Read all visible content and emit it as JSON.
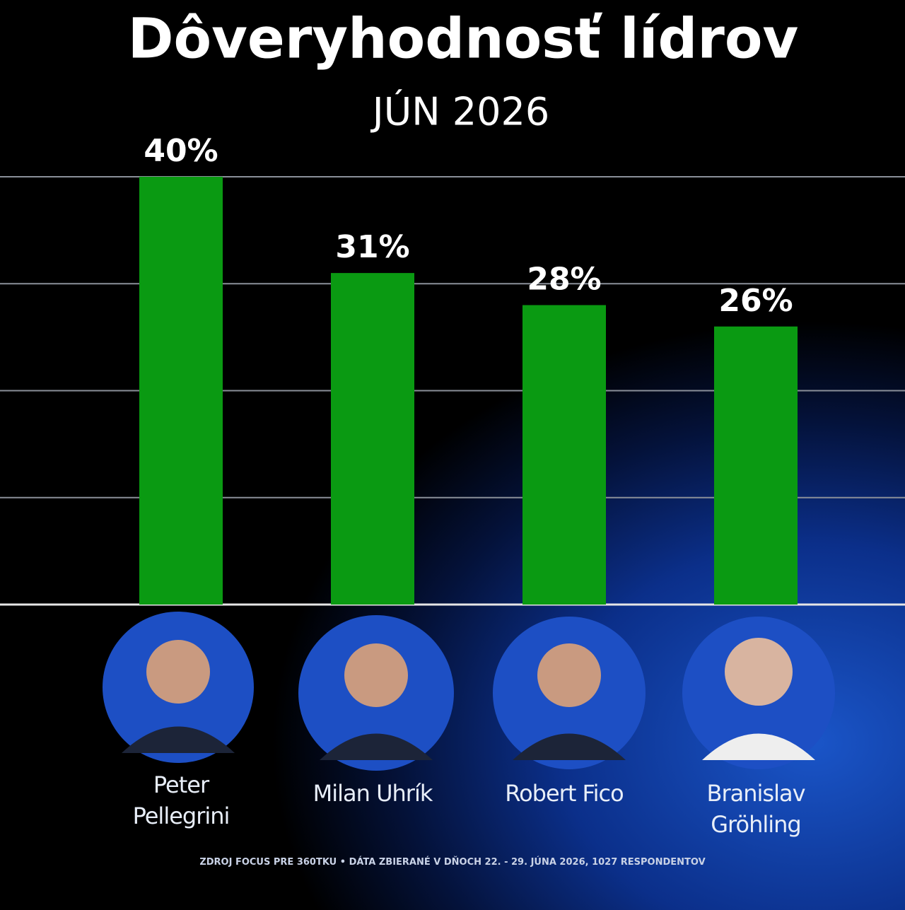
{
  "chart_data": {
    "type": "bar",
    "title": "Dôveryhodnosť lídrov",
    "subtitle": "JÚN 2026",
    "categories": [
      "Peter Pellegrini",
      "Milan Uhrík",
      "Robert Fico",
      "Branislav Gröhling"
    ],
    "values": [
      40,
      31,
      28,
      26
    ],
    "value_labels": [
      "40%",
      "31%",
      "28%",
      "26%"
    ],
    "color": "#0a9a12",
    "ylim": [
      0,
      40
    ],
    "yticks": [
      0,
      10,
      20,
      30,
      40
    ],
    "grid": true,
    "source": "ZDROJ FOCUS PRE 360TKU • DÁTA ZBIERANÉ V DŇOCH 22. - 29. JÚNA 2026, 1027 RESPONDENTOV"
  }
}
